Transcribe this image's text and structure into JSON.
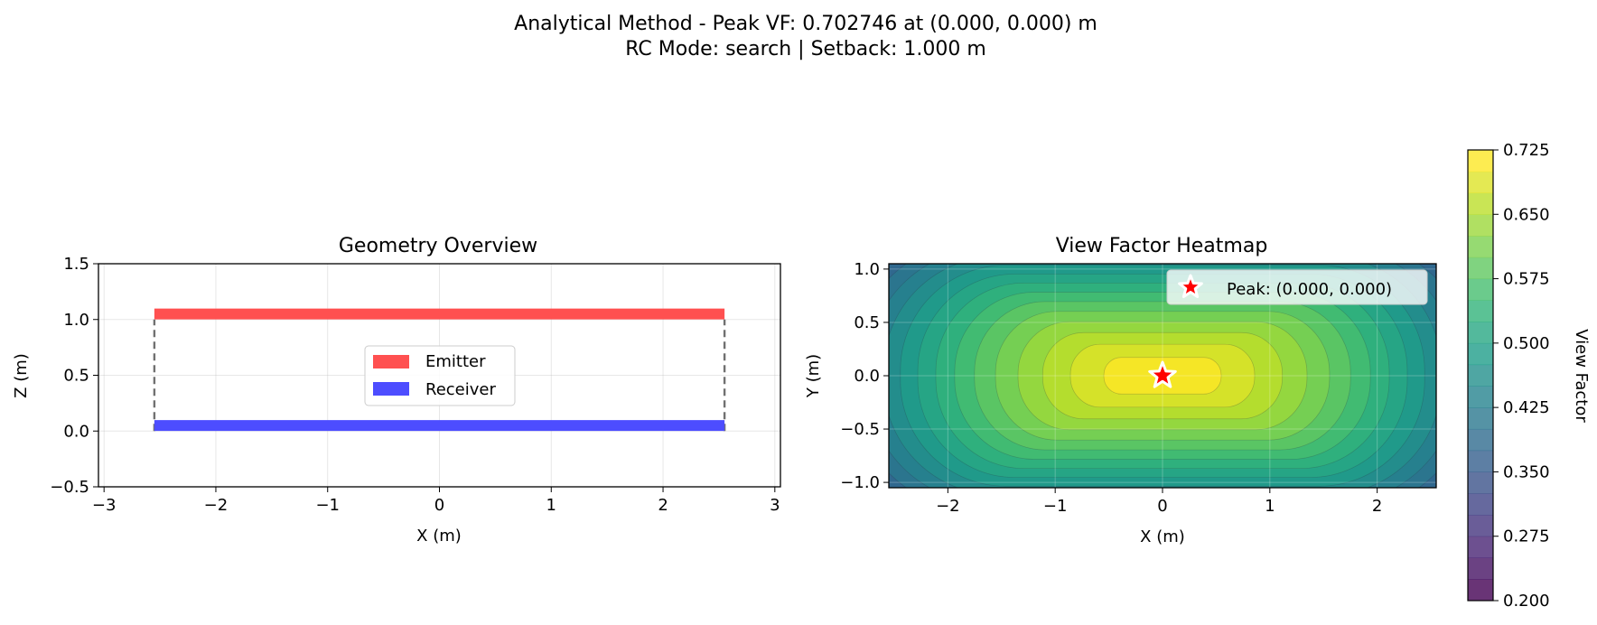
{
  "figure": {
    "suptitle_line1": "Analytical Method - Peak VF: 0.702746 at (0.000, 0.000) m",
    "suptitle_line2": "RC Mode: search | Setback: 1.000 m"
  },
  "chart_data": [
    {
      "type": "line",
      "title": "Geometry Overview",
      "xlabel": "X (m)",
      "ylabel": "Z (m)",
      "xlim": [
        -3.05,
        3.05
      ],
      "ylim": [
        -0.5,
        1.5
      ],
      "xticks": [
        -3,
        -2,
        -1,
        0,
        1,
        2,
        3
      ],
      "yticks": [
        -0.5,
        0.0,
        0.5,
        1.0,
        1.5
      ],
      "xtick_labels": [
        "−3",
        "−2",
        "−1",
        "0",
        "1",
        "2",
        "3"
      ],
      "ytick_labels": [
        "−0.5",
        "0.0",
        "0.5",
        "1.0",
        "1.5"
      ],
      "grid": true,
      "legend_position": "center",
      "series": [
        {
          "name": "Emitter",
          "color": "#ff5050",
          "x": [
            -2.55,
            2.55
          ],
          "y": [
            1.05,
            1.05
          ]
        },
        {
          "name": "Receiver",
          "color": "#4d4dff",
          "x": [
            -2.55,
            2.55
          ],
          "y": [
            0.05,
            0.05
          ]
        }
      ],
      "connectors": [
        {
          "color": "#707070",
          "style": "dashed",
          "x": [
            -2.55,
            -2.55
          ],
          "y": [
            0.0,
            1.0
          ]
        },
        {
          "color": "#707070",
          "style": "dashed",
          "x": [
            2.55,
            2.55
          ],
          "y": [
            0.0,
            1.0
          ]
        }
      ]
    },
    {
      "type": "heatmap",
      "title": "View Factor Heatmap",
      "xlabel": "X (m)",
      "ylabel": "Y (m)",
      "xlim": [
        -2.55,
        2.55
      ],
      "ylim": [
        -1.05,
        1.05
      ],
      "xticks": [
        -2,
        -1,
        0,
        1,
        2
      ],
      "yticks": [
        -1.0,
        -0.5,
        0.0,
        0.5,
        1.0
      ],
      "xtick_labels": [
        "−2",
        "−1",
        "0",
        "1",
        "2"
      ],
      "ytick_labels": [
        "−1.0",
        "−0.5",
        "0.0",
        "0.5",
        "1.0"
      ],
      "grid": true,
      "legend_position": "top-right",
      "colormap": "viridis",
      "color_range": [
        0.2,
        0.725
      ],
      "levels": 21,
      "peak": {
        "label": "Peak: (0.000, 0.000)",
        "x": 0.0,
        "y": 0.0,
        "value": 0.702746,
        "marker_color": "#ff0000"
      },
      "colorbar": {
        "label": "View Factor",
        "ticks": [
          0.2,
          0.275,
          0.35,
          0.425,
          0.5,
          0.575,
          0.65,
          0.725
        ],
        "tick_labels": [
          "0.200",
          "0.275",
          "0.350",
          "0.425",
          "0.500",
          "0.575",
          "0.650",
          "0.725"
        ]
      }
    }
  ]
}
